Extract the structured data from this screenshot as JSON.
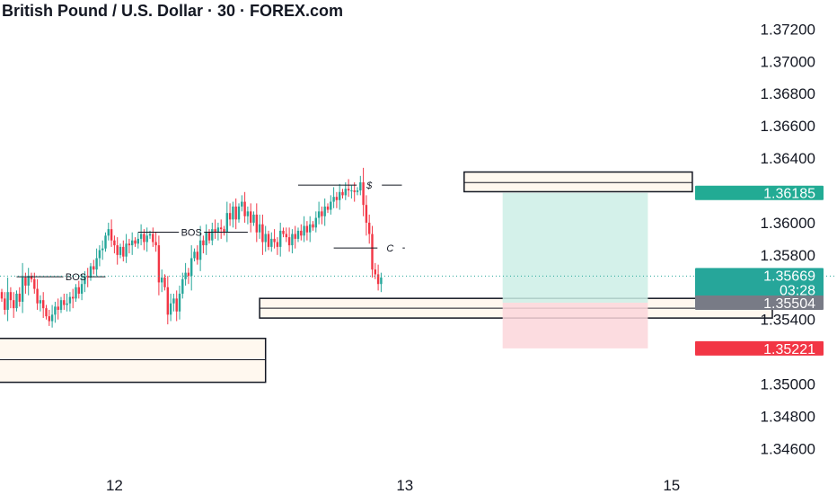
{
  "header": {
    "title": "British Pound / U.S. Dollar · 30 · FOREX.com"
  },
  "colors": {
    "up": "#26a69a",
    "down": "#f23645",
    "zone_fill": "#fff8ef",
    "target_fill": "#cdeee6",
    "stop_fill": "#fbd6da",
    "price_line": "#26a69a",
    "countdown_tag": "#787b86",
    "target_tag": "#22ab94",
    "stop_tag": "#f23645"
  },
  "chart_data": {
    "type": "candlestick",
    "title": "British Pound / U.S. Dollar · 30 · FOREX.com",
    "ylim": [
      1.3443,
      1.3738
    ],
    "y_ticks": [
      "1.37200",
      "1.37000",
      "1.36800",
      "1.36600",
      "1.36400",
      "1.36000",
      "1.35800",
      "1.35400",
      "1.35000",
      "1.34800",
      "1.34600"
    ],
    "x_ticks": [
      {
        "label": "12",
        "bar": 38
      },
      {
        "label": "13",
        "bar": 136
      },
      {
        "label": "15",
        "bar": 226
      }
    ],
    "grid": false,
    "closes": [
      1.3553,
      1.3546,
      1.3557,
      1.3552,
      1.3547,
      1.3556,
      1.3551,
      1.3566,
      1.3561,
      1.3567,
      1.3565,
      1.3559,
      1.355,
      1.3552,
      1.3547,
      1.3542,
      1.3539,
      1.3543,
      1.3548,
      1.3546,
      1.3552,
      1.3549,
      1.355,
      1.3554,
      1.3553,
      1.356,
      1.3556,
      1.3562,
      1.3567,
      1.3566,
      1.3573,
      1.3571,
      1.3578,
      1.3583,
      1.3584,
      1.3592,
      1.3596,
      1.3589,
      1.3586,
      1.358,
      1.3585,
      1.3579,
      1.3587,
      1.3586,
      1.3589,
      1.3587,
      1.359,
      1.3593,
      1.3588,
      1.3592,
      1.3593,
      1.3588,
      1.3586,
      1.3563,
      1.3566,
      1.356,
      1.3543,
      1.355,
      1.3553,
      1.3545,
      1.3556,
      1.3565,
      1.3569,
      1.3567,
      1.3578,
      1.3582,
      1.3577,
      1.3589,
      1.3586,
      1.3594,
      1.3589,
      1.3596,
      1.3594,
      1.3597,
      1.3596,
      1.3594,
      1.3606,
      1.3602,
      1.361,
      1.3602,
      1.361,
      1.3613,
      1.3604,
      1.3607,
      1.36,
      1.3605,
      1.3594,
      1.3599,
      1.3588,
      1.3593,
      1.3585,
      1.359,
      1.3588,
      1.3585,
      1.3595,
      1.3593,
      1.3591,
      1.3586,
      1.3593,
      1.359,
      1.3595,
      1.3592,
      1.3598,
      1.3594,
      1.3599,
      1.3597,
      1.3603,
      1.3607,
      1.3604,
      1.361,
      1.3608,
      1.3613,
      1.3616,
      1.3614,
      1.3619,
      1.3617,
      1.3621,
      1.362,
      1.362,
      1.3619,
      1.362,
      1.3625,
      1.3611,
      1.36,
      1.3593,
      1.3571,
      1.3568,
      1.3562,
      1.3566
    ],
    "last_close": 1.35669,
    "annotations": [
      {
        "text": "BOS",
        "style": "normal",
        "price": 1.35665,
        "bar_from": 5,
        "bar_to": 35,
        "label_bar": 25
      },
      {
        "text": "BOS",
        "style": "normal",
        "price": 1.35941,
        "bar_from": 46,
        "bar_to": 83,
        "label_bar": 64
      },
      {
        "text": "$",
        "style": "italic",
        "price": 1.36233,
        "bar_from": 100,
        "bar_to": 135,
        "label_bar": 124
      },
      {
        "text": "C",
        "style": "italic",
        "price": 1.35843,
        "bar_from": 112,
        "bar_to": 136,
        "label_bar": 131
      }
    ],
    "zones": [
      {
        "x_from_bar": -5,
        "x_to_bar": 89,
        "top": 1.35283,
        "mid": 1.35151,
        "bottom": 1.35011
      },
      {
        "x_from_bar": 87,
        "x_to_bar": 260,
        "top": 1.35531,
        "mid": 1.3547,
        "bottom": 1.35409
      },
      {
        "x_from_bar": 156,
        "x_to_bar": 233,
        "top": 1.36314,
        "mid": 1.36249,
        "bottom": 1.36192
      }
    ],
    "position": {
      "type": "long",
      "entry": 1.35504,
      "target": 1.36185,
      "stop": 1.35221,
      "bar_from": 169,
      "bar_to": 218
    },
    "price_tags": [
      {
        "text": "1.36185",
        "price": 1.36185,
        "kind": "target"
      },
      {
        "text": "1.35669",
        "price": 1.35669,
        "kind": "last"
      },
      {
        "text": "03:28",
        "kind": "countdown"
      },
      {
        "text": "1.35504",
        "price": 1.35504,
        "kind": "entry"
      },
      {
        "text": "1.35221",
        "price": 1.35221,
        "kind": "stop"
      }
    ]
  }
}
